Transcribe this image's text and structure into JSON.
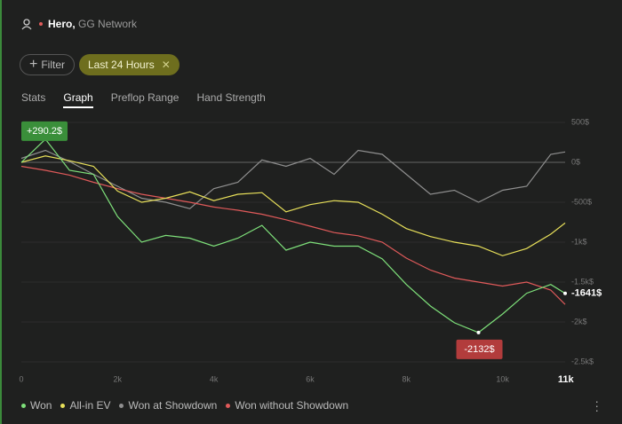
{
  "header": {
    "user": "Hero,",
    "network": "GG Network"
  },
  "filters": {
    "button": "Filter",
    "chip": "Last 24 Hours"
  },
  "tabs": [
    "Stats",
    "Graph",
    "Preflop Range",
    "Hand Strength"
  ],
  "active_tab": 1,
  "chart_data": {
    "type": "line",
    "x": [
      0,
      500,
      1000,
      1500,
      2000,
      2500,
      3000,
      3500,
      4000,
      4500,
      5000,
      5500,
      6000,
      6500,
      7000,
      7500,
      8000,
      8500,
      9000,
      9500,
      10000,
      10500,
      11000,
      11300
    ],
    "series": [
      {
        "name": "Won",
        "color": "#7ee07a",
        "values": [
          0,
          290.2,
          -100,
          -150,
          -680,
          -1000,
          -915,
          -950,
          -1050,
          -950,
          -790,
          -1100,
          -1000,
          -1050,
          -1050,
          -1210,
          -1530,
          -1800,
          -2010,
          -2132,
          -1900,
          -1640,
          -1530,
          -1641
        ]
      },
      {
        "name": "All-in EV",
        "color": "#e8e05a",
        "values": [
          0,
          80,
          20,
          -50,
          -360,
          -500,
          -450,
          -370,
          -480,
          -400,
          -380,
          -620,
          -530,
          -480,
          -500,
          -650,
          -830,
          -930,
          -1000,
          -1050,
          -1170,
          -1080,
          -900,
          -760
        ]
      },
      {
        "name": "Won at Showdown",
        "color": "#8f8f8f",
        "values": [
          50,
          150,
          10,
          -150,
          -300,
          -450,
          -500,
          -580,
          -330,
          -250,
          30,
          -50,
          50,
          -150,
          150,
          100,
          -150,
          -400,
          -350,
          -500,
          -350,
          -300,
          100,
          130
        ]
      },
      {
        "name": "Won without Showdown",
        "color": "#e05a5a",
        "values": [
          -50,
          -100,
          -160,
          -250,
          -330,
          -400,
          -450,
          -500,
          -560,
          -600,
          -650,
          -720,
          -800,
          -880,
          -920,
          -1000,
          -1200,
          -1350,
          -1450,
          -1500,
          -1550,
          -1500,
          -1600,
          -1780
        ]
      }
    ],
    "xlim": [
      0,
      11300
    ],
    "xticks": [
      0,
      {
        "value": 2000,
        "label": "2k"
      },
      {
        "value": 4000,
        "label": "4k"
      },
      {
        "value": 6000,
        "label": "6k"
      },
      {
        "value": 8000,
        "label": "8k"
      },
      {
        "value": 10000,
        "label": "10k"
      },
      {
        "value": 11000,
        "label": "11k"
      }
    ],
    "ylim": [
      -2500,
      500
    ],
    "yticks": [
      {
        "value": 500,
        "label": "500$"
      },
      {
        "value": 0,
        "label": "0$"
      },
      {
        "value": -500,
        "label": "-500$"
      },
      {
        "value": -1000,
        "label": "-1k$"
      },
      {
        "value": -1500,
        "label": "-1.5k$"
      },
      {
        "value": -2000,
        "label": "-2k$"
      },
      {
        "value": -2500,
        "label": "-2.5k$"
      }
    ],
    "grid": true,
    "annotations": [
      {
        "text": "+290.2$",
        "x": 500,
        "y": 290.2
      },
      {
        "text": "-2132$",
        "x": 9500,
        "y": -2132
      },
      {
        "text": "-1641$",
        "x": 11300,
        "y": -1641
      }
    ]
  }
}
